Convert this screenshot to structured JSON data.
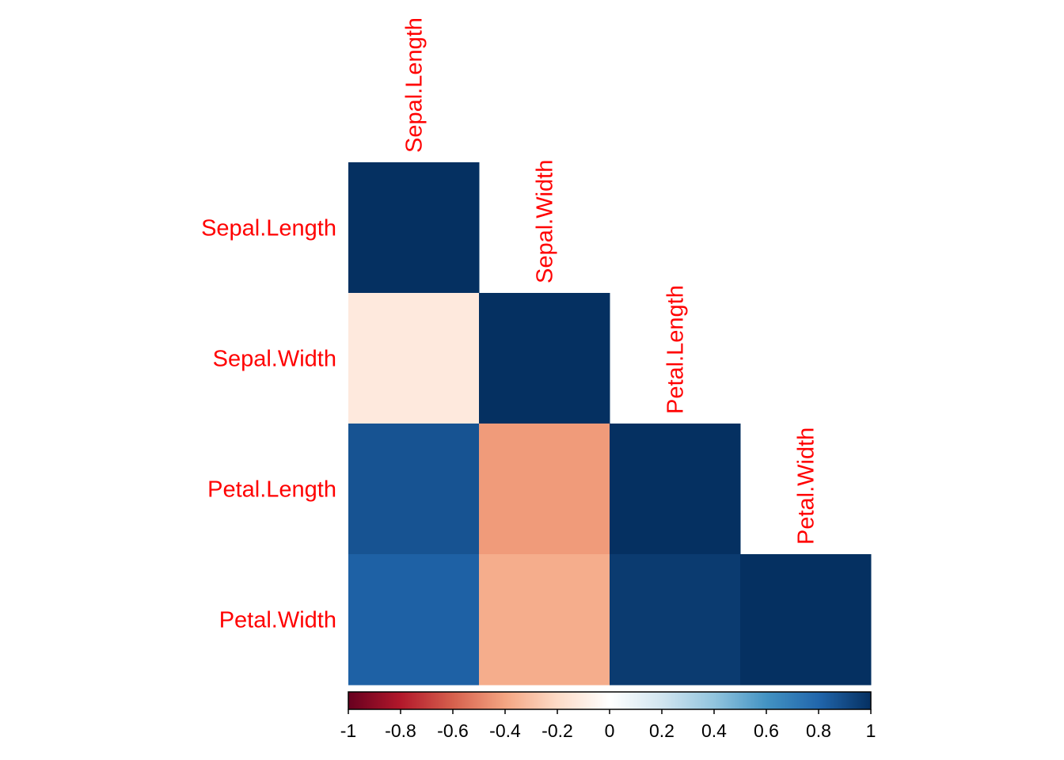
{
  "chart_data": {
    "type": "heatmap",
    "layout": "lower-triangle",
    "variables": [
      "Sepal.Length",
      "Sepal.Width",
      "Petal.Length",
      "Petal.Width"
    ],
    "matrix": [
      [
        1.0,
        null,
        null,
        null
      ],
      [
        -0.12,
        1.0,
        null,
        null
      ],
      [
        0.87,
        -0.43,
        1.0,
        null
      ],
      [
        0.82,
        -0.37,
        0.96,
        1.0
      ]
    ],
    "label_color": "#ff0000",
    "colorbar": {
      "range": [
        -1,
        1
      ],
      "ticks": [
        "-1",
        "-0.8",
        "-0.6",
        "-0.4",
        "-0.2",
        "0",
        "0.2",
        "0.4",
        "0.6",
        "0.8",
        "1"
      ],
      "colors": [
        "#67001F",
        "#B2182B",
        "#D6604D",
        "#F4A582",
        "#FDDBC7",
        "#FFFFFF",
        "#D1E5F0",
        "#92C5DE",
        "#4393C3",
        "#2166AC",
        "#053061"
      ]
    }
  }
}
